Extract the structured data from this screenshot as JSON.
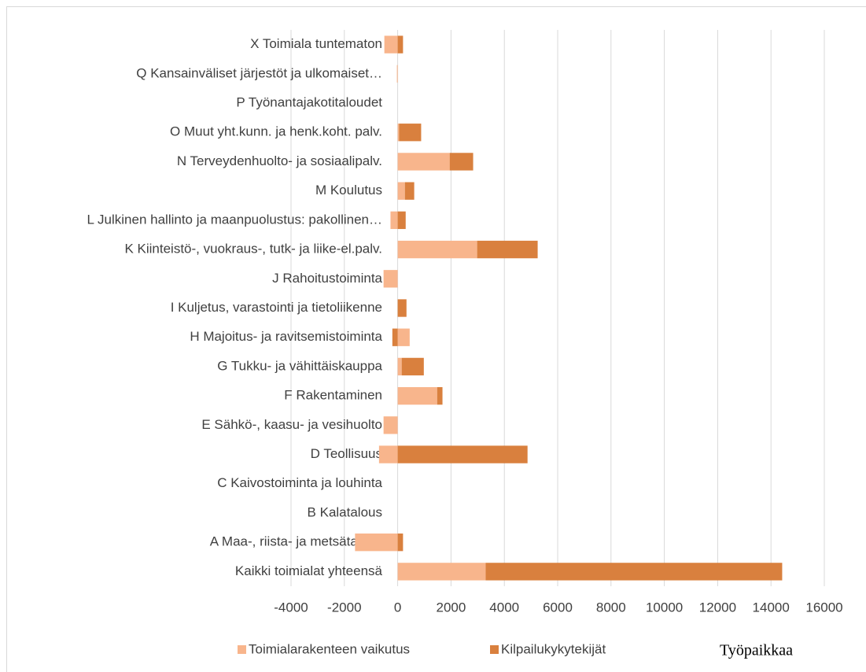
{
  "chart_data": {
    "type": "bar",
    "orientation": "horizontal",
    "stacked": true,
    "categories": [
      "Kaikki toimialat yhteensä",
      "A Maa-, riista- ja metsätalous",
      "B Kalatalous",
      "C Kaivostoiminta ja louhinta",
      "D Teollisuus",
      "E Sähkö-, kaasu- ja vesihuolto",
      "F Rakentaminen",
      "G Tukku- ja vähittäiskauppa",
      "H Majoitus- ja ravitsemistoiminta",
      "I Kuljetus, varastointi ja tietoliikenne",
      "J Rahoitustoiminta",
      "K Kiinteistö-, vuokraus-, tutk- ja liike-el.palv.",
      "L Julkinen hallinto ja maanpuolustus: pakollinen…",
      "M Koulutus",
      "N Terveydenhuolto- ja sosiaalipalv.",
      "O Muut yht.kunn. ja henk.koht. palv.",
      "P Työnantajakotitaloudet",
      "Q Kansainväliset järjestöt ja ulkomaiset…",
      "X Toimiala tuntematon"
    ],
    "series": [
      {
        "name": "Toimialarakenteen vaikutus",
        "color": "#f8b58c",
        "values": [
          3300,
          -1600,
          0,
          0,
          -700,
          -530,
          1480,
          150,
          450,
          0,
          -530,
          2980,
          -270,
          270,
          1950,
          50,
          0,
          -30,
          -500
        ]
      },
      {
        "name": "Kilpailukykytekijät",
        "color": "#d9803e",
        "values": [
          11120,
          200,
          0,
          0,
          4870,
          0,
          200,
          830,
          -200,
          330,
          0,
          2270,
          300,
          350,
          880,
          830,
          0,
          0,
          200
        ]
      }
    ],
    "xlim": [
      -4000,
      16000
    ],
    "xticks": [
      -4000,
      -2000,
      0,
      2000,
      4000,
      6000,
      8000,
      10000,
      12000,
      14000,
      16000
    ],
    "grid": true,
    "legend": "bottom",
    "x_label": "Työpaikkaa"
  }
}
